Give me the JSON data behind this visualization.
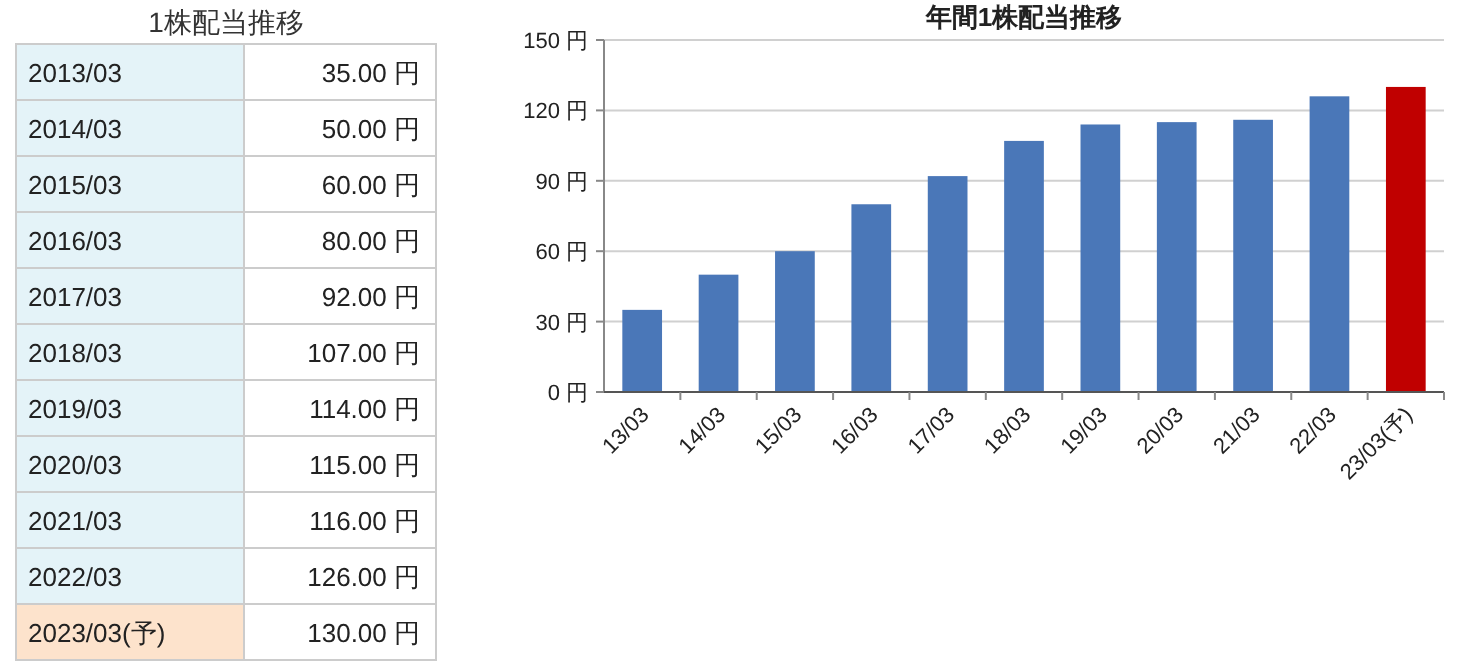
{
  "chart_data": [
    {
      "type": "other",
      "title": "1株配当推移",
      "categories": [
        "2013/03",
        "2014/03",
        "2015/03",
        "2016/03",
        "2017/03",
        "2018/03",
        "2019/03",
        "2020/03",
        "2021/03",
        "2022/03",
        "2023/03(予)"
      ],
      "value_labels": [
        "35.00 円",
        "50.00 円",
        "60.00 円",
        "80.00 円",
        "92.00 円",
        "107.00 円",
        "114.00 円",
        "115.00 円",
        "116.00 円",
        "126.00 円",
        "130.00 円"
      ],
      "colors": [
        "#e4f3f8",
        "#e4f3f8",
        "#e4f3f8",
        "#e4f3f8",
        "#e4f3f8",
        "#e4f3f8",
        "#e4f3f8",
        "#e4f3f8",
        "#e4f3f8",
        "#e4f3f8",
        "#fde3cc"
      ]
    },
    {
      "type": "bar",
      "title": "年間1株配当推移",
      "categories": [
        "13/03",
        "14/03",
        "15/03",
        "16/03",
        "17/03",
        "18/03",
        "19/03",
        "20/03",
        "21/03",
        "22/03",
        "23/03(予)"
      ],
      "values": [
        35,
        50,
        60,
        80,
        92,
        107,
        114,
        115,
        116,
        126,
        130
      ],
      "colors": [
        "#4a77b8",
        "#4a77b8",
        "#4a77b8",
        "#4a77b8",
        "#4a77b8",
        "#4a77b8",
        "#4a77b8",
        "#4a77b8",
        "#4a77b8",
        "#4a77b8",
        "#c00000"
      ],
      "ylim": [
        0,
        150
      ],
      "yticks": [
        {
          "value": 0,
          "label": "0 円"
        },
        {
          "value": 30,
          "label": "30 円"
        },
        {
          "value": 60,
          "label": "60 円"
        },
        {
          "value": 90,
          "label": "90 円"
        },
        {
          "value": 120,
          "label": "120 円"
        },
        {
          "value": 150,
          "label": "150 円"
        }
      ],
      "grid": "y"
    }
  ]
}
